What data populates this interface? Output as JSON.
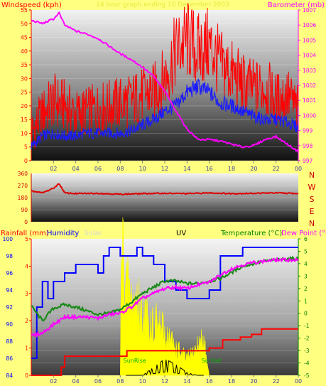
{
  "colors": {
    "page_bg": "#ffff80",
    "wind_speed": "#ff0000",
    "wind_gust_avg": "#1a1aff",
    "barometer": "#ff00ff",
    "wind_dir": "#dd0000",
    "humidity": "#0000ff",
    "temperature": "#1a8a1a",
    "dew_point": "#ff00ff",
    "rainfall": "#ff0000",
    "solar": "#ffff00",
    "uv": "#000000",
    "sun_marker": "#00b000"
  },
  "chart_data": [
    {
      "id": "wind_barometer",
      "type": "line",
      "title": "24 hour graph ending 10 December 2003",
      "left_axis_label": "Windspeed (kph)",
      "right_axis_label": "Barometer (mb)",
      "x_ticks": [
        "02",
        "04",
        "06",
        "08",
        "10",
        "12",
        "14",
        "16",
        "18",
        "20",
        "22",
        "00"
      ],
      "x_range_hours": [
        0,
        24
      ],
      "left_range": [
        0,
        55
      ],
      "left_ticks": [
        "0",
        "5",
        "10",
        "15",
        "20",
        "25",
        "30",
        "35",
        "40",
        "45",
        "50",
        "55"
      ],
      "right_range": [
        997,
        1007
      ],
      "right_ticks": [
        "997",
        "998",
        "999",
        "1000",
        "1001",
        "1002",
        "1003",
        "1004",
        "1005",
        "1006",
        "1007"
      ],
      "grid": true,
      "series": [
        {
          "name": "Wind speed",
          "axis": "left",
          "x": [
            0,
            1,
            2,
            3,
            4,
            5,
            6,
            7,
            8,
            9,
            10,
            11,
            12,
            13,
            14,
            15,
            16,
            17,
            18,
            19,
            20,
            21,
            22,
            23,
            24
          ],
          "values": [
            10,
            17,
            22,
            20,
            17,
            18,
            19,
            20,
            21,
            22,
            24,
            25,
            30,
            40,
            44,
            40,
            42,
            35,
            32,
            28,
            26,
            27,
            22,
            24,
            18
          ]
        },
        {
          "name": "Average wind",
          "axis": "left",
          "x": [
            0,
            1,
            2,
            3,
            4,
            5,
            6,
            7,
            8,
            9,
            10,
            11,
            12,
            13,
            14,
            15,
            16,
            17,
            18,
            19,
            20,
            21,
            22,
            23,
            24
          ],
          "values": [
            5,
            9,
            10,
            9,
            9,
            10,
            10,
            10,
            10,
            11,
            13,
            15,
            18,
            20,
            25,
            27,
            25,
            21,
            20,
            18,
            16,
            15,
            15,
            14,
            12
          ]
        },
        {
          "name": "Barometer",
          "axis": "right",
          "x": [
            0,
            1,
            2,
            2.5,
            3,
            4,
            5,
            6,
            7,
            8,
            9,
            10,
            11,
            12,
            13,
            14,
            15,
            16,
            17,
            18,
            19,
            20,
            21,
            22,
            23,
            24
          ],
          "values": [
            1006.3,
            1006.1,
            1006.4,
            1006.8,
            1006.0,
            1005.6,
            1005.4,
            1005.1,
            1004.6,
            1004.1,
            1003.7,
            1003.2,
            1002.6,
            1001.6,
            1000.3,
            999.1,
            998.4,
            998.4,
            998.3,
            998.1,
            997.9,
            998.0,
            998.4,
            998.6,
            998.1,
            997.6
          ]
        }
      ]
    },
    {
      "id": "wind_direction",
      "type": "line",
      "x_ticks": [
        "02",
        "04",
        "06",
        "08",
        "10",
        "12",
        "14",
        "16",
        "18",
        "20",
        "22",
        "00"
      ],
      "y_range": [
        0,
        360
      ],
      "y_ticks": [
        "0",
        "90",
        "180",
        "270",
        "360"
      ],
      "compass_labels": [
        "N",
        "W",
        "S",
        "E",
        "N"
      ],
      "series": [
        {
          "name": "Wind direction",
          "x": [
            0,
            1,
            2,
            2.5,
            3,
            4,
            6,
            8,
            10,
            12,
            14,
            16,
            18,
            20,
            22,
            24
          ],
          "values": [
            230,
            215,
            250,
            285,
            215,
            210,
            212,
            205,
            210,
            212,
            210,
            215,
            210,
            212,
            215,
            210
          ]
        }
      ]
    },
    {
      "id": "temp_humidity_rain",
      "type": "line",
      "legend": [
        "Rainfall (mm)",
        "Humidity",
        "Solar",
        "UV",
        "Temperature (°C)",
        "Dew Point (°C)"
      ],
      "x_ticks": [
        "02",
        "04",
        "06",
        "08",
        "10",
        "12",
        "14",
        "16",
        "18",
        "20",
        "22",
        "00"
      ],
      "humidity_range": [
        84,
        100
      ],
      "humidity_ticks": [
        "84",
        "86",
        "88",
        "90",
        "92",
        "94",
        "96",
        "98",
        "100"
      ],
      "rain_range": [
        0,
        5
      ],
      "rain_ticks": [
        "0",
        "1",
        "2",
        "3",
        "4",
        "5"
      ],
      "temp_range": [
        -5,
        6
      ],
      "temp_ticks": [
        "-5",
        "-4",
        "-3",
        "-2",
        "-1",
        "0",
        "1",
        "2",
        "3",
        "4",
        "5",
        "6"
      ],
      "annotations": [
        "SunRise",
        "SunSet"
      ],
      "series": [
        {
          "name": "Humidity",
          "axis": "humidity",
          "x": [
            0,
            0.5,
            1,
            1.5,
            2,
            3,
            4,
            5,
            6,
            6.5,
            7,
            8,
            9,
            9.5,
            10,
            11,
            12,
            13,
            14,
            15,
            16,
            17,
            18,
            19,
            20,
            21,
            22,
            23,
            24
          ],
          "values": [
            86,
            92,
            95,
            93,
            95,
            96,
            97,
            97,
            96,
            98,
            99,
            98,
            98,
            99,
            98,
            97,
            95,
            94,
            93,
            93,
            94,
            98,
            98,
            99,
            99,
            99,
            99,
            99,
            99
          ]
        },
        {
          "name": "Temperature",
          "axis": "temp",
          "x": [
            0,
            1,
            2,
            3,
            4,
            5,
            6,
            7,
            8,
            9,
            10,
            11,
            12,
            13,
            14,
            15,
            16,
            17,
            18,
            19,
            20,
            21,
            22,
            23,
            24
          ],
          "values": [
            0.6,
            -0.6,
            0.4,
            0.7,
            0.5,
            0.2,
            -0.1,
            0.0,
            0.3,
            0.9,
            1.6,
            2.1,
            2.6,
            2.6,
            2.4,
            2.4,
            2.6,
            2.8,
            3.3,
            3.8,
            4.0,
            4.2,
            4.3,
            4.4,
            4.4
          ]
        },
        {
          "name": "Dew Point",
          "axis": "temp",
          "x": [
            0,
            1,
            2,
            3,
            4,
            5,
            6,
            7,
            8,
            9,
            10,
            11,
            12,
            13,
            14,
            15,
            16,
            17,
            18,
            19,
            20,
            21,
            22,
            23,
            24
          ],
          "values": [
            -1.8,
            -1.6,
            -0.9,
            -0.3,
            -0.3,
            -0.3,
            -0.4,
            -0.1,
            0.0,
            0.5,
            1.2,
            1.6,
            2.0,
            2.1,
            2.0,
            2.3,
            2.5,
            3.1,
            3.6,
            3.9,
            4.1,
            4.2,
            4.3,
            4.3,
            4.3
          ]
        },
        {
          "name": "Rainfall",
          "axis": "rain",
          "x": [
            0,
            2.7,
            3.0,
            8.6,
            16.0,
            17.2,
            18.8,
            19.8,
            20.7,
            24
          ],
          "values": [
            0,
            0.3,
            0.7,
            0.9,
            1.0,
            1.3,
            1.4,
            1.5,
            1.7,
            1.7
          ]
        },
        {
          "name": "Solar",
          "axis": "rain",
          "x": [
            8.0,
            8.1,
            8.6,
            9.0,
            9.5,
            10.0,
            10.5,
            11.0,
            11.5,
            12.0,
            12.5,
            13.0,
            13.5,
            14.0,
            14.5,
            15.0,
            15.5,
            16.0
          ],
          "values": [
            0,
            4.8,
            3.2,
            2.6,
            2.8,
            2.2,
            2.1,
            1.9,
            1.8,
            1.5,
            1.3,
            1.0,
            0.8,
            0.6,
            0.8,
            1.1,
            1.3,
            0
          ]
        },
        {
          "name": "UV",
          "axis": "rain",
          "x": [
            8.5,
            9,
            10,
            11,
            12,
            13,
            14,
            15,
            15.5
          ],
          "values": [
            0,
            0,
            0,
            0.3,
            0.6,
            0.4,
            0.1,
            0,
            0
          ]
        }
      ]
    }
  ]
}
